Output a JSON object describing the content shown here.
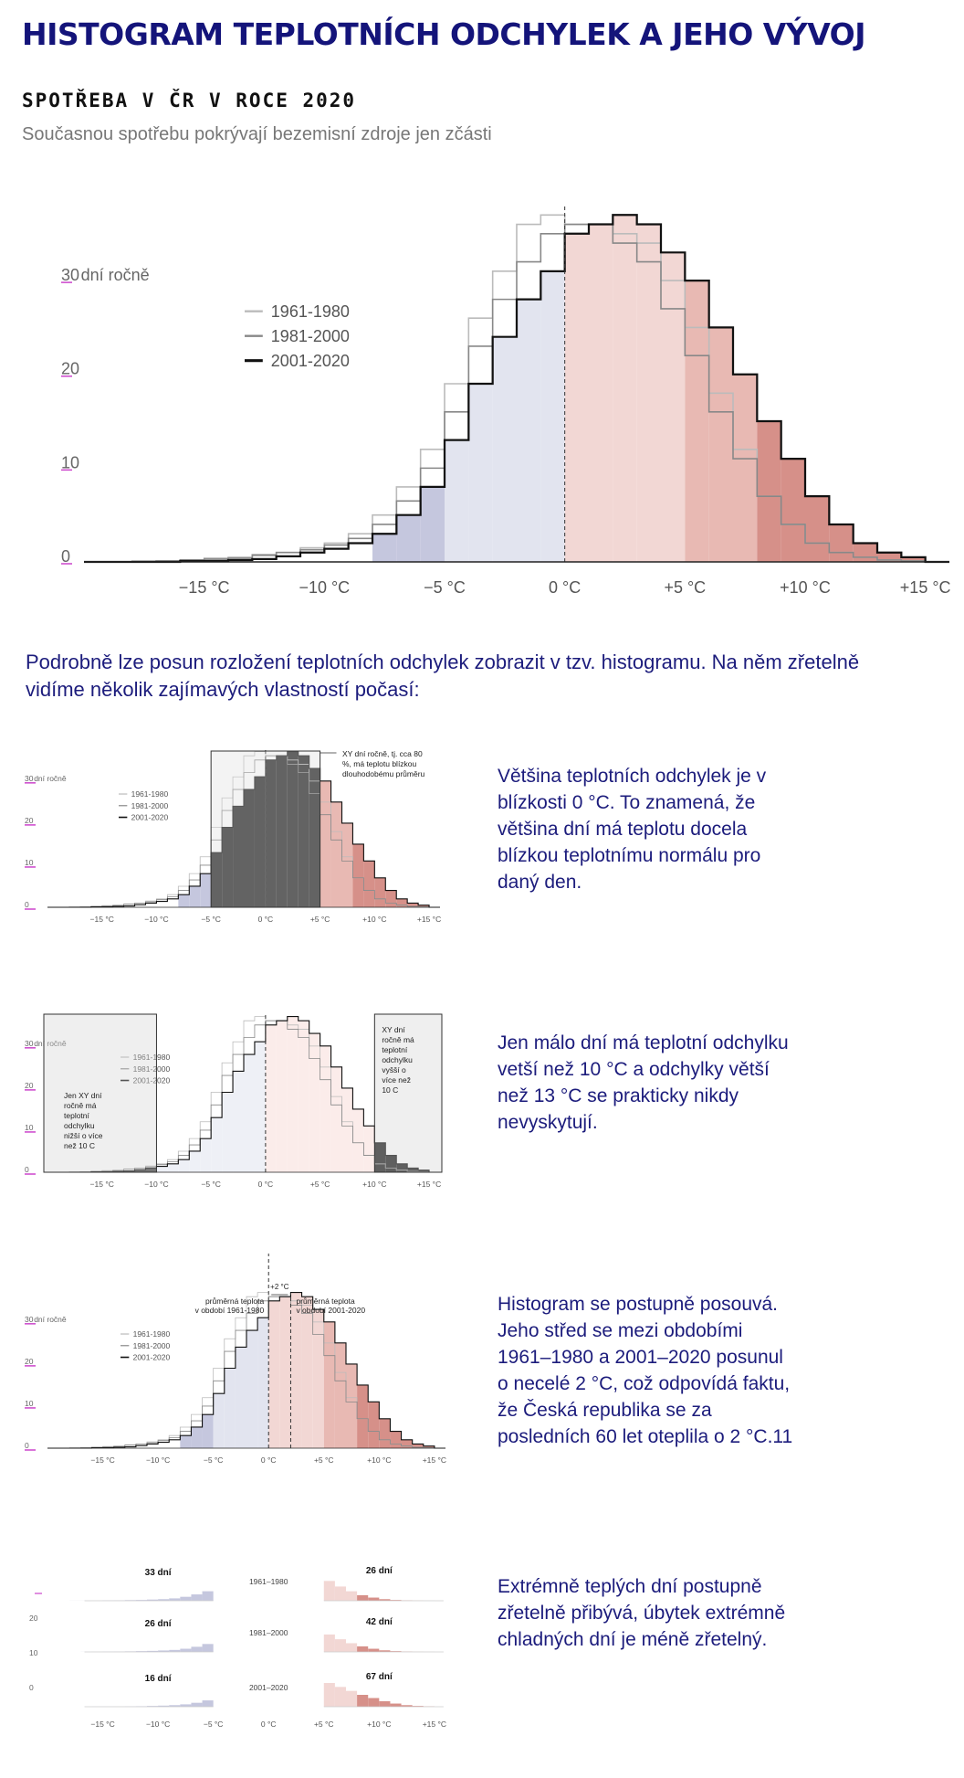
{
  "page": {
    "title": "HISTOGRAM TEPLOTNÍCH ODCHYLEK A JEHO VÝVOJ",
    "intro": "Podrobně lze posun rozložení teplotních odchylek zobrazit v tzv. histogramu. Na něm zřetelně vidíme několik zajímavých vlastností počasí:"
  },
  "colors": {
    "title": "#14147a",
    "body_text": "#1c1c7c",
    "cold_fill": "#c5c7de",
    "warm_fill": "#f2d7d4",
    "hot_fill": "#d69089",
    "series_1961": "#bbbbbb",
    "series_1981": "#888888",
    "series_2001": "#111111"
  },
  "chart_data": {
    "type": "histogram",
    "title": "SPOTŘEBA V ČR V ROCE 2020",
    "subtitle": "Současnou spotřebu pokrývají bezemisní zdroje jen zčásti",
    "ylabel": "dní ročně",
    "y_ticks": [
      0,
      10,
      20,
      30
    ],
    "y_ticks_labels": [
      "0",
      "10",
      "20",
      "30"
    ],
    "x_tick_labels": [
      "−15 °C",
      "−10 °C",
      "−5 °C",
      "0 °C",
      "+5 °C",
      "+10 °C",
      "+15 °C"
    ],
    "x_tick_values": [
      -15,
      -10,
      -5,
      0,
      5,
      10,
      15
    ],
    "xlim": [
      -20,
      16
    ],
    "ylim": [
      0,
      38
    ],
    "bin_width": 1,
    "bin_starts": [
      -20,
      -19,
      -18,
      -17,
      -16,
      -15,
      -14,
      -13,
      -12,
      -11,
      -10,
      -9,
      -8,
      -7,
      -6,
      -5,
      -4,
      -3,
      -2,
      -1,
      0,
      1,
      2,
      3,
      4,
      5,
      6,
      7,
      8,
      9,
      10,
      11,
      12,
      13,
      14,
      15
    ],
    "legend_position": "top-left",
    "series": [
      {
        "name": "1961-1980",
        "values": [
          0,
          0,
          0.1,
          0.1,
          0.2,
          0.4,
          0.5,
          0.8,
          1,
          1.5,
          2,
          3,
          5,
          8,
          12,
          19,
          26,
          31,
          36,
          37,
          36,
          36,
          35,
          34,
          30,
          25,
          18,
          12,
          7,
          4,
          2,
          1,
          0.5,
          0.2,
          0.1,
          0
        ]
      },
      {
        "name": "1981-2000",
        "values": [
          0,
          0,
          0,
          0.1,
          0.2,
          0.3,
          0.4,
          0.7,
          1,
          1.3,
          1.8,
          2.5,
          4,
          6.5,
          10,
          16,
          23,
          28,
          32,
          35,
          36,
          36,
          34,
          32,
          27,
          22,
          16,
          11,
          7,
          4,
          2,
          1,
          0.5,
          0.2,
          0.1,
          0
        ]
      },
      {
        "name": "2001-2020",
        "values": [
          0,
          0,
          0,
          0,
          0.1,
          0.1,
          0.2,
          0.3,
          0.6,
          1,
          1.4,
          2,
          3,
          5,
          8,
          13,
          19,
          24,
          28,
          31,
          35,
          36,
          37,
          36,
          33,
          30,
          25,
          20,
          15,
          11,
          7,
          4,
          2,
          1,
          0.5,
          0
        ]
      }
    ]
  },
  "panels": [
    {
      "text": "Většina teplotních odchylek je v blízkosti 0 °C. To znamená, že většina dní má teplotu docela blízkou teplotnímu normálu pro daný den.",
      "annotations": [
        "XY dní ročně, tj. cca 80",
        "%, má teplotu blízkou",
        "dlouhodobému průměru"
      ]
    },
    {
      "text": "Jen málo dní má teplotní odchylku vetší než 10 °C a odchylky větší než 13 °C se prakticky nikdy nevyskytují.",
      "left_annotations": [
        "Jen XY dní",
        "ročně má",
        "teplotní",
        "odchylku",
        "nižší o více",
        "než 10 C"
      ],
      "right_annotations": [
        "XY dní",
        "ročně má",
        "teplotní",
        "odchylku",
        "vyšší o",
        "více než",
        "10 C"
      ]
    },
    {
      "text": "Histogram se postupně posouvá. Jeho střed se mezi obdobími 1961–1980 a 2001–2020 posunul o necelé 2 °C, což odpovídá faktu, že Česká republika se za posledních 60 let oteplila o 2 °C.11",
      "annotations": {
        "shift": "+2 °C",
        "left": [
          "průměrná teplota",
          "v období 1961-1980"
        ],
        "right": [
          "průměrná teplota",
          "v období 2001-2020"
        ]
      }
    },
    {
      "text": "Extrémně teplých dní postupně zřetelně přibývá, úbytek extrémně chladných dní je méně zřetelný.",
      "rows": [
        {
          "period": "1961–1980",
          "cold_label": "33 dní",
          "warm_label": "26 dní"
        },
        {
          "period": "1981–2000",
          "cold_label": "26 dní",
          "warm_label": "42 dní"
        },
        {
          "period": "2001–2020",
          "cold_label": "16 dní",
          "warm_label": "67 dní"
        }
      ]
    }
  ]
}
